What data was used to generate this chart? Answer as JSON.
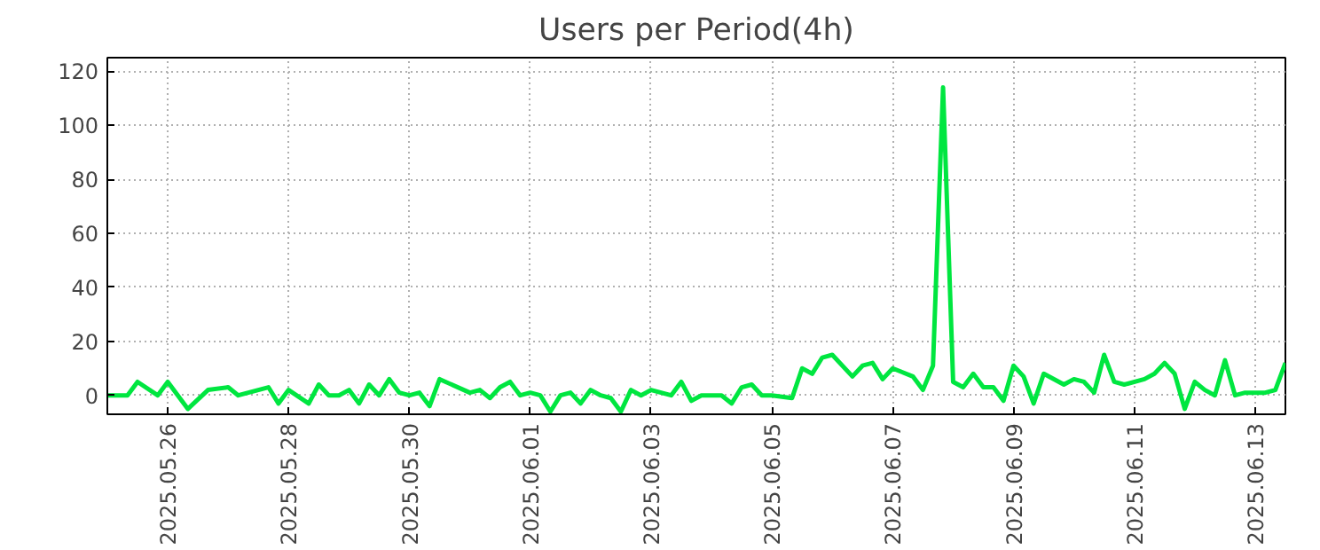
{
  "chart_data": {
    "type": "line",
    "title": "Users per Period(4h)",
    "x": [
      "2025-05-25T00:00",
      "2025-05-25T08:00",
      "2025-05-25T12:00",
      "2025-05-25T20:00",
      "2025-05-26T00:00",
      "2025-05-26T08:00",
      "2025-05-26T16:00",
      "2025-05-27T00:00",
      "2025-05-27T04:00",
      "2025-05-27T16:00",
      "2025-05-27T20:00",
      "2025-05-28T00:00",
      "2025-05-28T08:00",
      "2025-05-28T12:00",
      "2025-05-28T16:00",
      "2025-05-28T20:00",
      "2025-05-29T00:00",
      "2025-05-29T04:00",
      "2025-05-29T08:00",
      "2025-05-29T12:00",
      "2025-05-29T16:00",
      "2025-05-29T20:00",
      "2025-05-30T00:00",
      "2025-05-30T04:00",
      "2025-05-30T08:00",
      "2025-05-30T12:00",
      "2025-05-31T00:00",
      "2025-05-31T04:00",
      "2025-05-31T08:00",
      "2025-05-31T12:00",
      "2025-05-31T16:00",
      "2025-05-31T20:00",
      "2025-06-01T00:00",
      "2025-06-01T04:00",
      "2025-06-01T08:00",
      "2025-06-01T12:00",
      "2025-06-01T16:00",
      "2025-06-01T20:00",
      "2025-06-02T00:00",
      "2025-06-02T04:00",
      "2025-06-02T08:00",
      "2025-06-02T12:00",
      "2025-06-02T16:00",
      "2025-06-02T20:00",
      "2025-06-03T00:00",
      "2025-06-03T08:00",
      "2025-06-03T12:00",
      "2025-06-03T16:00",
      "2025-06-03T20:00",
      "2025-06-04T04:00",
      "2025-06-04T08:00",
      "2025-06-04T12:00",
      "2025-06-04T16:00",
      "2025-06-04T20:00",
      "2025-06-05T00:00",
      "2025-06-05T08:00",
      "2025-06-05T12:00",
      "2025-06-05T16:00",
      "2025-06-05T20:00",
      "2025-06-06T00:00",
      "2025-06-06T08:00",
      "2025-06-06T12:00",
      "2025-06-06T16:00",
      "2025-06-06T20:00",
      "2025-06-07T00:00",
      "2025-06-07T08:00",
      "2025-06-07T12:00",
      "2025-06-07T16:00",
      "2025-06-07T20:00",
      "2025-06-08T00:00",
      "2025-06-08T04:00",
      "2025-06-08T08:00",
      "2025-06-08T12:00",
      "2025-06-08T16:00",
      "2025-06-08T20:00",
      "2025-06-09T00:00",
      "2025-06-09T04:00",
      "2025-06-09T08:00",
      "2025-06-09T12:00",
      "2025-06-09T20:00",
      "2025-06-10T00:00",
      "2025-06-10T04:00",
      "2025-06-10T08:00",
      "2025-06-10T12:00",
      "2025-06-10T16:00",
      "2025-06-10T20:00",
      "2025-06-11T04:00",
      "2025-06-11T08:00",
      "2025-06-11T12:00",
      "2025-06-11T16:00",
      "2025-06-11T20:00",
      "2025-06-12T00:00",
      "2025-06-12T04:00",
      "2025-06-12T08:00",
      "2025-06-12T12:00",
      "2025-06-12T16:00",
      "2025-06-12T20:00",
      "2025-06-13T04:00",
      "2025-06-13T08:00",
      "2025-06-13T12:00"
    ],
    "series": [
      {
        "color": "#00e640",
        "values": [
          0,
          0,
          5,
          0,
          5,
          -5,
          2,
          3,
          0,
          3,
          -3,
          2,
          -3,
          4,
          0,
          0,
          2,
          -3,
          4,
          0,
          6,
          1,
          0,
          1,
          -4,
          6,
          1,
          2,
          -1,
          3,
          5,
          0,
          1,
          0,
          -6,
          0,
          1,
          -3,
          2,
          0,
          -1,
          -6,
          2,
          0,
          2,
          0,
          5,
          -2,
          0,
          0,
          -3,
          3,
          4,
          0,
          0,
          -1,
          10,
          8,
          14,
          15,
          7,
          11,
          12,
          6,
          10,
          7,
          2,
          11,
          114,
          5,
          3,
          8,
          3,
          3,
          -2,
          11,
          7,
          -3,
          8,
          4,
          6,
          5,
          1,
          15,
          5,
          4,
          6,
          8,
          12,
          8,
          -5,
          5,
          2,
          0,
          13,
          0,
          1,
          1,
          2,
          12
        ]
      }
    ],
    "xlim": [
      "2025-05-25T00:00",
      "2025-06-13T12:00"
    ],
    "xticks": [
      {
        "value": "2025-05-26",
        "label": "2025.05.26"
      },
      {
        "value": "2025-05-28",
        "label": "2025.05.28"
      },
      {
        "value": "2025-05-30",
        "label": "2025.05.30"
      },
      {
        "value": "2025-06-01",
        "label": "2025.06.01"
      },
      {
        "value": "2025-06-03",
        "label": "2025.06.03"
      },
      {
        "value": "2025-06-05",
        "label": "2025.06.05"
      },
      {
        "value": "2025-06-07",
        "label": "2025.06.07"
      },
      {
        "value": "2025-06-09",
        "label": "2025.06.09"
      },
      {
        "value": "2025-06-11",
        "label": "2025.06.11"
      },
      {
        "value": "2025-06-13",
        "label": "2025.06.13"
      }
    ],
    "ylim": [
      -7,
      125
    ],
    "yticks": [
      0,
      20,
      40,
      60,
      80,
      100,
      120
    ],
    "grid": true,
    "line_style": "solid"
  }
}
